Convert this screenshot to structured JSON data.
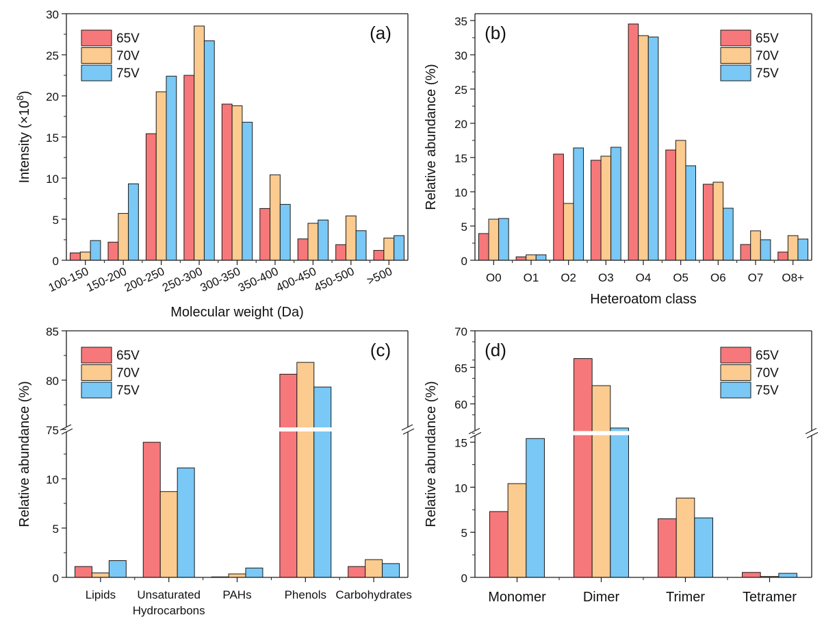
{
  "colors": {
    "65V": "#f7787a",
    "70V": "#fbcb8f",
    "75V": "#79c8f5",
    "stroke": "#1a1a1a"
  },
  "chart_data": [
    {
      "id": "a",
      "type": "bar",
      "panel_label": "(a)",
      "xlabel": "Molecular weight (Da)",
      "ylabel_main": "Intensity (×10",
      "ylabel_sup": "8",
      "ylabel_end": ")",
      "categories": [
        "100-150",
        "150-200",
        "200-250",
        "250-300",
        "300-350",
        "350-400",
        "400-450",
        "450-500",
        ">500"
      ],
      "series": [
        {
          "name": "65V",
          "values": [
            0.9,
            2.2,
            15.4,
            22.5,
            19.0,
            6.3,
            2.6,
            1.9,
            1.2
          ]
        },
        {
          "name": "70V",
          "values": [
            1.0,
            5.7,
            20.5,
            28.5,
            18.8,
            10.4,
            4.5,
            5.4,
            2.7
          ]
        },
        {
          "name": "75V",
          "values": [
            2.4,
            9.3,
            22.4,
            26.7,
            16.8,
            6.8,
            4.9,
            3.6,
            3.0
          ]
        }
      ],
      "ylim": [
        0,
        30
      ],
      "yticks": [
        0,
        5,
        10,
        15,
        20,
        25,
        30
      ],
      "legend_position": "top-left"
    },
    {
      "id": "b",
      "type": "bar",
      "panel_label": "(b)",
      "xlabel": "Heteroatom class",
      "ylabel": "Relative abundance (%)",
      "categories": [
        "O0",
        "O1",
        "O2",
        "O3",
        "O4",
        "O5",
        "O6",
        "O7",
        "O8+"
      ],
      "series": [
        {
          "name": "65V",
          "values": [
            3.9,
            0.5,
            15.5,
            14.6,
            34.5,
            16.1,
            11.1,
            2.3,
            1.2
          ]
        },
        {
          "name": "70V",
          "values": [
            6.0,
            0.8,
            8.3,
            15.2,
            32.8,
            17.5,
            11.4,
            4.3,
            3.6
          ]
        },
        {
          "name": "75V",
          "values": [
            6.1,
            0.8,
            16.4,
            16.5,
            32.6,
            13.8,
            7.6,
            3.0,
            3.1
          ]
        }
      ],
      "ylim": [
        0,
        36
      ],
      "yticks": [
        0,
        5,
        10,
        15,
        20,
        25,
        30,
        35
      ],
      "legend_position": "top-right"
    },
    {
      "id": "c",
      "type": "bar",
      "panel_label": "(c)",
      "ylabel": "Relative abundance (%)",
      "categories": [
        "Lipids",
        "Unsaturated|Hydrocarbons",
        "PAHs",
        "Phenols",
        "Carbohydrates"
      ],
      "series": [
        {
          "name": "65V",
          "values": [
            1.1,
            13.7,
            0.05,
            80.6,
            1.1
          ]
        },
        {
          "name": "70V",
          "values": [
            0.45,
            8.7,
            0.35,
            81.8,
            1.8
          ]
        },
        {
          "name": "75V",
          "values": [
            1.7,
            11.1,
            0.95,
            79.3,
            1.4
          ]
        }
      ],
      "axis_break": {
        "lower": [
          0,
          15
        ],
        "upper": [
          75,
          85
        ],
        "lower_fraction": 0.6
      },
      "yticks_lower": [
        0,
        5,
        10
      ],
      "yticks_upper": [
        75,
        80,
        85
      ],
      "legend_position": "top-left"
    },
    {
      "id": "d",
      "type": "bar",
      "panel_label": "(d)",
      "ylabel": "Relative abundance (%)",
      "categories": [
        "Monomer",
        "Dimer",
        "Trimer",
        "Tetramer"
      ],
      "series": [
        {
          "name": "65V",
          "values": [
            7.3,
            66.2,
            6.5,
            0.55
          ]
        },
        {
          "name": "70V",
          "values": [
            10.4,
            62.5,
            8.8,
            0.1
          ]
        },
        {
          "name": "75V",
          "values": [
            15.4,
            56.7,
            6.6,
            0.45
          ]
        }
      ],
      "axis_break": {
        "lower": [
          0,
          16
        ],
        "upper": [
          56,
          70
        ],
        "lower_fraction": 0.585
      },
      "yticks_lower": [
        0,
        5,
        10,
        15
      ],
      "yticks_upper": [
        60,
        65,
        70
      ],
      "legend_position": "top-right"
    }
  ]
}
